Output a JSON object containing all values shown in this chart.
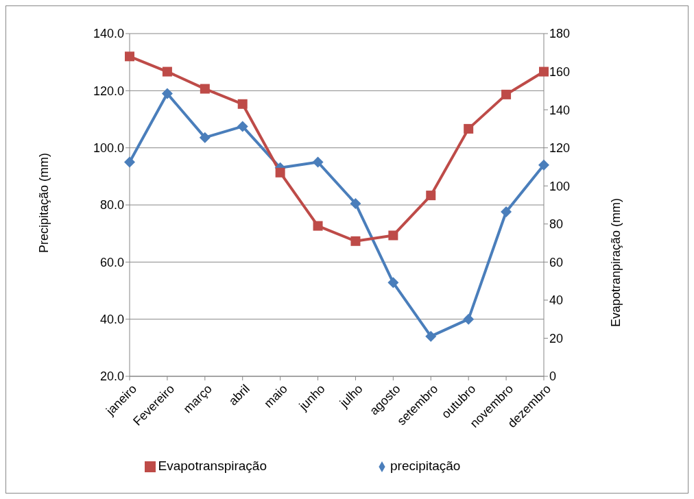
{
  "chart_data": {
    "type": "line",
    "categories": [
      "janeiro",
      "Fevereiro",
      "março",
      "abril",
      "maio",
      "junho",
      "julho",
      "agosto",
      "setembro",
      "outubro",
      "novembro",
      "dezembro"
    ],
    "ylabel": "Precipitação (mm)",
    "y2label": "Evapotranpiração (mm)",
    "series": [
      {
        "name": "precipitação",
        "color": "#4a7ebb",
        "marker": "diamond",
        "values": [
          95,
          119,
          103.6,
          107.5,
          93,
          95,
          80.5,
          52.8,
          34,
          40,
          77.6,
          94
        ]
      },
      {
        "name": "Evapotranspiração",
        "color": "#be4b48",
        "marker": "square",
        "axis": "y2",
        "values": [
          168,
          160,
          151,
          143,
          107,
          79,
          71,
          74,
          95,
          130,
          148,
          160
        ]
      }
    ],
    "ylim": [
      20,
      140
    ],
    "yticks": [
      {
        "value": 20,
        "label": "20.0"
      },
      {
        "value": 40,
        "label": "40.0"
      },
      {
        "value": 60,
        "label": "60.0"
      },
      {
        "value": 80,
        "label": "80.0"
      },
      {
        "value": 100,
        "label": "100.0"
      },
      {
        "value": 120,
        "label": "120.0"
      },
      {
        "value": 140,
        "label": "140.0"
      }
    ],
    "y2lim": [
      0,
      180
    ],
    "y2ticks": [
      0,
      20,
      40,
      60,
      80,
      100,
      120,
      140,
      160,
      180
    ],
    "grid": "y",
    "legend": "bottom",
    "line_style": "solid"
  }
}
